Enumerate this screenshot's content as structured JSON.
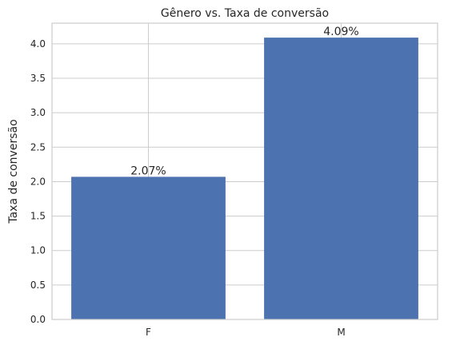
{
  "chart_data": {
    "type": "bar",
    "title": "Gênero vs. Taxa de conversão",
    "xlabel": "",
    "ylabel": "Taxa de conversão",
    "categories": [
      "F",
      "M"
    ],
    "values": [
      2.07,
      4.09
    ],
    "data_labels": [
      "2.07%",
      "4.09%"
    ],
    "ylim": [
      0,
      4.3
    ],
    "yticks": [
      0.0,
      0.5,
      1.0,
      1.5,
      2.0,
      2.5,
      3.0,
      3.5,
      4.0
    ],
    "ytick_labels": [
      "0.0",
      "0.5",
      "1.0",
      "1.5",
      "2.0",
      "2.5",
      "3.0",
      "3.5",
      "4.0"
    ],
    "grid": true,
    "bar_color": "#4c72b0",
    "grid_color": "#cccccc"
  }
}
